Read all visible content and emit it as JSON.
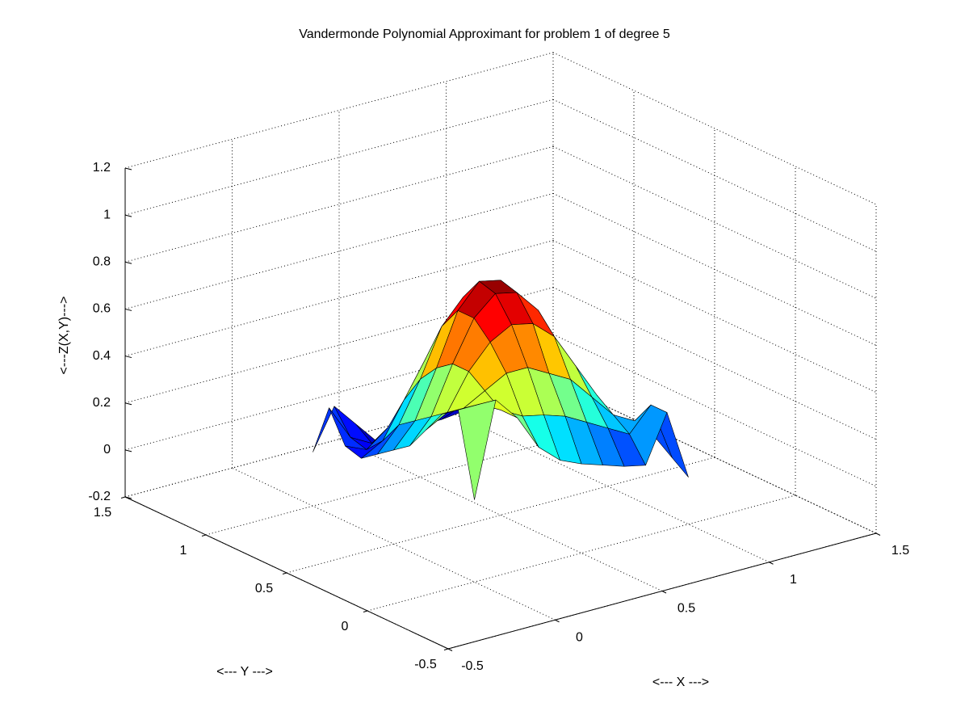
{
  "chart_data": {
    "type": "surface",
    "title": "Vandermonde Polynomial Approximant for problem 1 of degree 5",
    "x_label": "<--- X --->",
    "y_label": "<--- Y --->",
    "z_label": "<---Z(X,Y)--->",
    "colormap": "jet",
    "grid": true,
    "x": [
      0,
      0.1,
      0.2,
      0.3,
      0.4,
      0.5,
      0.6,
      0.7,
      0.8,
      0.9,
      1
    ],
    "y": [
      0,
      0.1,
      0.2,
      0.3,
      0.4,
      0.5,
      0.6,
      0.7,
      0.8,
      0.9,
      1
    ],
    "z": [
      [
        0.15,
        0.55,
        0.45,
        0.3,
        0.22,
        0.18,
        0.15,
        0.12,
        0.1,
        0.3,
        0.0
      ],
      [
        0.5,
        0.5,
        0.45,
        0.4,
        0.38,
        0.35,
        0.3,
        0.25,
        0.2,
        0.3,
        0.05
      ],
      [
        0.45,
        0.45,
        0.5,
        0.55,
        0.55,
        0.5,
        0.45,
        0.35,
        0.25,
        0.2,
        0.1
      ],
      [
        0.35,
        0.4,
        0.55,
        0.65,
        0.7,
        0.68,
        0.6,
        0.45,
        0.3,
        0.15,
        0.1
      ],
      [
        0.25,
        0.35,
        0.55,
        0.72,
        0.8,
        0.78,
        0.68,
        0.5,
        0.3,
        0.15,
        0.1
      ],
      [
        0.2,
        0.3,
        0.5,
        0.72,
        0.82,
        0.8,
        0.68,
        0.48,
        0.28,
        0.12,
        0.08
      ],
      [
        0.15,
        0.25,
        0.42,
        0.62,
        0.72,
        0.7,
        0.58,
        0.4,
        0.22,
        0.1,
        0.05
      ],
      [
        0.1,
        0.15,
        0.3,
        0.45,
        0.52,
        0.5,
        0.42,
        0.3,
        0.18,
        0.08,
        0.05
      ],
      [
        0.12,
        0.08,
        0.15,
        0.25,
        0.3,
        0.3,
        0.25,
        0.18,
        0.1,
        0.05,
        0.05
      ],
      [
        0.25,
        0.1,
        0.05,
        0.08,
        0.1,
        0.12,
        0.1,
        0.08,
        0.05,
        0.05,
        0.08
      ],
      [
        0.03,
        0.2,
        0.1,
        0.0,
        0.0,
        0.02,
        0.02,
        0.03,
        0.05,
        0.08,
        0.1
      ]
    ],
    "xlim": [
      -0.5,
      1.5
    ],
    "ylim": [
      -0.5,
      1.5
    ],
    "zlim": [
      -0.2,
      1.2
    ],
    "xticks": [
      -0.5,
      0,
      0.5,
      1,
      1.5
    ],
    "yticks": [
      -0.5,
      0,
      0.5,
      1,
      1.5
    ],
    "zticks": [
      -0.2,
      0,
      0.2,
      0.4,
      0.6,
      0.8,
      1,
      1.2
    ]
  }
}
